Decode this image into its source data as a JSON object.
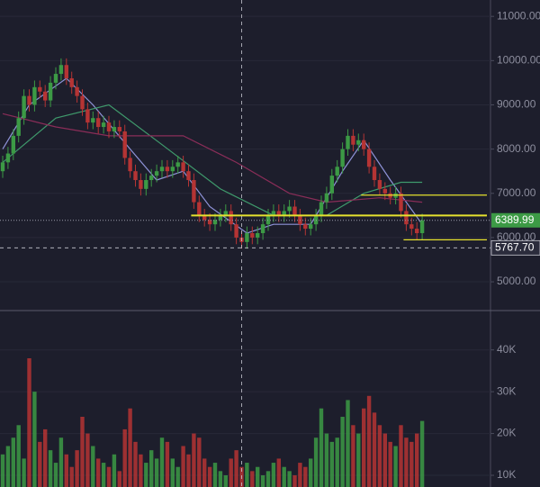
{
  "chart_data": {
    "type": "candlestick",
    "up_color": "#3c9a45",
    "down_color": "#b53434",
    "grid": true,
    "open": [
      7500,
      7700,
      7900,
      8300,
      8700,
      9200,
      9000,
      9400,
      9300,
      9100,
      9500,
      9700,
      9900,
      9600,
      9400,
      9200,
      8900,
      8600,
      8700,
      8500,
      8600,
      8400,
      8500,
      8400,
      7800,
      7500,
      7300,
      7100,
      7300,
      7400,
      7500,
      7600,
      7500,
      7600,
      7700,
      7500,
      7300,
      6800,
      6500,
      6400,
      6300,
      6400,
      6500,
      6600,
      6300,
      6000,
      5900,
      6100,
      6000,
      6100,
      6300,
      6500,
      6600,
      6500,
      6600,
      6700,
      6500,
      6300,
      6200,
      6300,
      6500,
      6800,
      7000,
      7400,
      7600,
      8000,
      8300,
      8100,
      8200,
      8000,
      7600,
      7300,
      7100,
      7000,
      6900,
      7000,
      6600,
      6300,
      6200,
      6100
    ],
    "high": [
      7850,
      8050,
      8450,
      8850,
      9350,
      9350,
      9550,
      9550,
      9450,
      9650,
      9850,
      10050,
      10050,
      9750,
      9550,
      9350,
      9050,
      8850,
      8850,
      8750,
      8750,
      8650,
      8650,
      8550,
      7950,
      7650,
      7450,
      7450,
      7550,
      7650,
      7750,
      7750,
      7750,
      7850,
      7850,
      7650,
      7450,
      6950,
      6650,
      6550,
      6550,
      6650,
      6750,
      6750,
      6450,
      6150,
      6250,
      6250,
      6250,
      6450,
      6650,
      6750,
      6750,
      6750,
      6850,
      6850,
      6650,
      6450,
      6450,
      6650,
      6950,
      7150,
      7550,
      7750,
      8150,
      8450,
      8450,
      8350,
      8350,
      8150,
      7750,
      7450,
      7250,
      7150,
      7150,
      7150,
      6750,
      6450,
      6350,
      6540
    ],
    "low": [
      7350,
      7550,
      7750,
      8150,
      8550,
      8850,
      8850,
      9150,
      8950,
      8950,
      9350,
      9550,
      9450,
      9250,
      9050,
      8750,
      8450,
      8450,
      8350,
      8350,
      8250,
      8250,
      8250,
      7650,
      7350,
      7150,
      6950,
      6950,
      7150,
      7250,
      7350,
      7350,
      7350,
      7450,
      7350,
      7150,
      6650,
      6350,
      6250,
      6150,
      6150,
      6250,
      6350,
      6150,
      5850,
      5750,
      5750,
      5850,
      5850,
      5950,
      6150,
      6350,
      6350,
      6350,
      6450,
      6350,
      6150,
      6050,
      6050,
      6150,
      6350,
      6650,
      6850,
      7250,
      7450,
      7850,
      7950,
      7950,
      7850,
      7450,
      7150,
      6950,
      6850,
      6750,
      6750,
      6450,
      6150,
      6050,
      5950,
      5950
    ],
    "close": [
      7700,
      7900,
      8300,
      8700,
      9200,
      9000,
      9400,
      9300,
      9100,
      9500,
      9700,
      9900,
      9600,
      9400,
      9200,
      8900,
      8600,
      8700,
      8500,
      8600,
      8400,
      8500,
      8400,
      7800,
      7500,
      7300,
      7100,
      7300,
      7400,
      7500,
      7600,
      7500,
      7600,
      7700,
      7500,
      7300,
      6800,
      6500,
      6400,
      6300,
      6400,
      6500,
      6600,
      6300,
      6000,
      5900,
      6100,
      6000,
      6100,
      6300,
      6500,
      6600,
      6500,
      6600,
      6700,
      6500,
      6300,
      6200,
      6300,
      6500,
      6800,
      7000,
      7400,
      7600,
      8000,
      8300,
      8100,
      8200,
      8000,
      7600,
      7300,
      7100,
      7000,
      6900,
      7000,
      6600,
      6300,
      6200,
      6100,
      6390
    ],
    "ylim": [
      4350,
      11370
    ],
    "yticks": [
      {
        "value": 5000,
        "label": "5000.00"
      },
      {
        "value": 6000,
        "label": "6000.00"
      },
      {
        "value": 7000,
        "label": "7000.00"
      },
      {
        "value": 8000,
        "label": "8000.00"
      },
      {
        "value": 9000,
        "label": "9000.00"
      },
      {
        "value": 10000,
        "label": "10000.00"
      },
      {
        "value": 11000,
        "label": "11000.00"
      }
    ],
    "moving_averages": [
      {
        "color": "#8f93d8",
        "x": [
          0,
          5,
          12,
          17,
          24,
          29,
          34,
          39,
          46,
          51,
          58,
          64,
          68,
          73,
          79
        ],
        "values": [
          8000,
          9000,
          9600,
          9000,
          8000,
          7300,
          7500,
          6700,
          6100,
          6300,
          6300,
          7500,
          8200,
          7300,
          6300
        ]
      },
      {
        "color": "#3f9a6c",
        "x": [
          0,
          10,
          20,
          30,
          41,
          51,
          61,
          68,
          75,
          79
        ],
        "values": [
          7700,
          8700,
          9000,
          8100,
          7100,
          6500,
          6500,
          7000,
          7250,
          7250
        ]
      },
      {
        "color": "#8a2d58",
        "x": [
          0,
          10,
          20,
          34,
          44,
          54,
          61,
          71,
          79
        ],
        "values": [
          8800,
          8500,
          8300,
          8300,
          7700,
          7000,
          6800,
          6900,
          6800
        ]
      }
    ],
    "hlines": {
      "color": "#e6e22e",
      "values": [
        6500,
        6960,
        5950
      ],
      "start": [
        36,
        68,
        76
      ]
    },
    "last_price": {
      "value": 6389.99,
      "label": "6389.99",
      "color": "#3c9a45"
    },
    "crosshair": {
      "x": 45,
      "y": {
        "value": 5767.7,
        "label": "5767.70"
      }
    },
    "volume": {
      "values": [
        15000,
        17000,
        19000,
        22000,
        14000,
        38000,
        30000,
        18000,
        21000,
        16000,
        13000,
        19000,
        15000,
        12000,
        16000,
        24000,
        20000,
        17000,
        14000,
        13000,
        12000,
        15000,
        11000,
        21000,
        26000,
        18000,
        15000,
        13000,
        16000,
        14000,
        19000,
        18000,
        14000,
        12000,
        17000,
        15000,
        20000,
        19000,
        14000,
        12000,
        13000,
        11000,
        10000,
        14000,
        16000,
        12000,
        13000,
        11000,
        12000,
        10000,
        11000,
        13000,
        14000,
        12000,
        11000,
        10000,
        13000,
        12000,
        14000,
        19000,
        26000,
        20000,
        18000,
        19000,
        24000,
        28000,
        22000,
        20000,
        26000,
        29000,
        25000,
        22000,
        20000,
        18000,
        17000,
        22000,
        19000,
        18000,
        20000,
        23000
      ],
      "ylim": [
        7200,
        49200
      ],
      "yticks": [
        {
          "value": 10000,
          "label": "10K"
        },
        {
          "value": 20000,
          "label": "20K"
        },
        {
          "value": 30000,
          "label": "30K"
        },
        {
          "value": 40000,
          "label": "40K"
        }
      ]
    }
  }
}
